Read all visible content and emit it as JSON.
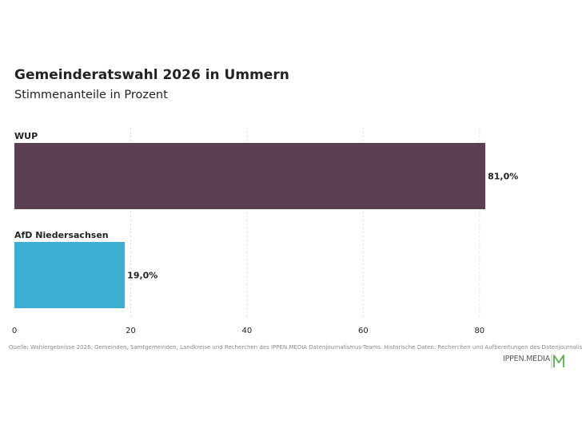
{
  "chart_data": {
    "type": "bar",
    "orientation": "horizontal",
    "title": "Gemeinderatswahl 2026 in Ummern",
    "subtitle": "Stimmenanteile in Prozent",
    "categories": [
      "WUP",
      "AfD Niedersachsen"
    ],
    "values": [
      81.0,
      19.0
    ],
    "value_labels": [
      "81,0%",
      "19,0%"
    ],
    "colors": [
      "#5b3f52",
      "#3eaed2"
    ],
    "xlim": [
      0,
      88
    ],
    "xticks": [
      0,
      20,
      40,
      60,
      80
    ],
    "grid": true,
    "legend": "none"
  },
  "footer": {
    "source": "Quelle: Wahlergebnisse 2026: Gemeinden, Samtgemeinden, Landkreise und Recherchen des IPPEN.MEDIA Datenjournalismus-Teams. Historische Daten: Recherchen und Aufbereitungen des Datenjournalismus-Teams",
    "brand": "IPPEN.MEDIA",
    "brand_color": "#5bb04e"
  }
}
